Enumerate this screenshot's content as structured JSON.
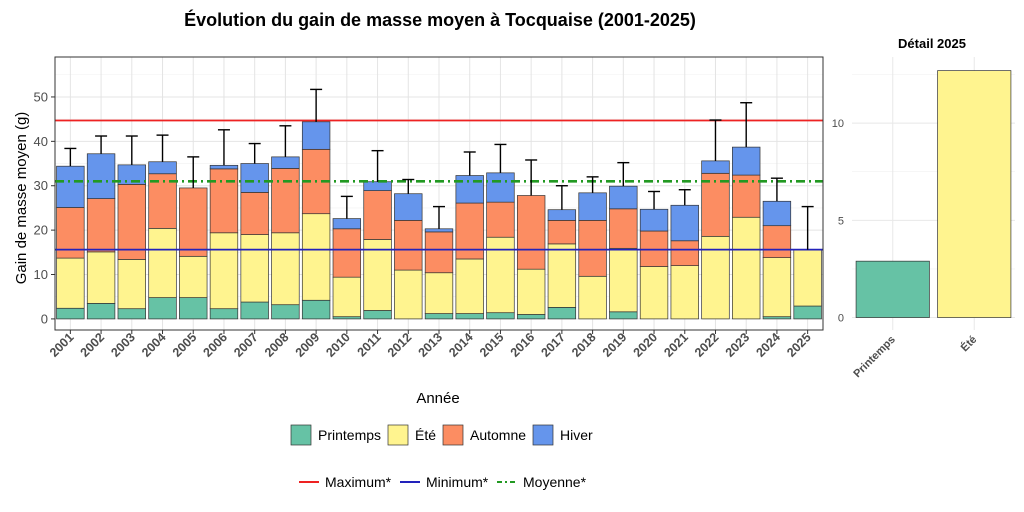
{
  "chart_data": [
    {
      "type": "bar",
      "stacked": true,
      "title": "Évolution du gain de masse moyen à Tocquaise (2001-2025)",
      "xlabel": "Année",
      "ylabel": "Gain de masse moyen (g)",
      "ylim": [
        -2.5,
        59
      ],
      "yticks": [
        0,
        10,
        20,
        30,
        40,
        50
      ],
      "grid": true,
      "categories": [
        "2001",
        "2002",
        "2003",
        "2004",
        "2005",
        "2006",
        "2007",
        "2008",
        "2009",
        "2010",
        "2011",
        "2012",
        "2013",
        "2014",
        "2015",
        "2016",
        "2017",
        "2018",
        "2019",
        "2020",
        "2021",
        "2022",
        "2023",
        "2024",
        "2025"
      ],
      "series": [
        {
          "name": "Printemps",
          "color": "#66c2a5",
          "values": [
            2.4,
            3.5,
            2.3,
            4.8,
            4.8,
            2.3,
            3.8,
            3.2,
            4.2,
            0.5,
            1.9,
            0,
            1.2,
            1.2,
            1.4,
            1.0,
            2.6,
            0,
            1.6,
            0,
            0,
            0,
            0,
            0.5,
            2.9
          ]
        },
        {
          "name": "Été",
          "color": "#fff48f",
          "values": [
            11.3,
            11.6,
            11.1,
            15.6,
            9.3,
            17.1,
            15.2,
            16.2,
            19.5,
            8.9,
            16.0,
            11.0,
            9.2,
            12.3,
            17.0,
            10.2,
            14.3,
            9.6,
            14.3,
            11.8,
            12.0,
            18.6,
            22.9,
            13.3,
            12.7
          ]
        },
        {
          "name": "Automne",
          "color": "#fc8d62",
          "values": [
            11.4,
            12.0,
            16.9,
            12.3,
            15.4,
            14.4,
            9.5,
            14.5,
            14.5,
            10.9,
            11.0,
            11.2,
            9.2,
            12.6,
            7.9,
            16.6,
            5.3,
            12.6,
            8.9,
            8.0,
            5.6,
            14.2,
            9.5,
            7.2,
            0
          ]
        },
        {
          "name": "Hiver",
          "color": "#6595ec",
          "values": [
            9.3,
            10.1,
            4.4,
            2.7,
            0,
            0.8,
            6.5,
            2.6,
            6.2,
            2.3,
            2.0,
            6.0,
            0.7,
            6.2,
            6.6,
            0,
            2.4,
            6.2,
            5.1,
            4.9,
            8.0,
            2.8,
            6.3,
            5.5,
            0
          ]
        }
      ],
      "errors": [
        4.0,
        4.0,
        6.5,
        6.0,
        7.0,
        8.0,
        4.5,
        7.0,
        7.3,
        5.0,
        7.0,
        3.2,
        5.0,
        5.3,
        6.4,
        8.0,
        5.4,
        3.6,
        5.3,
        4.0,
        3.5,
        9.2,
        10.0,
        5.2,
        9.7
      ],
      "reference_lines": [
        {
          "name": "Maximum*",
          "value": 44.7,
          "color": "#ee2222",
          "style": "solid"
        },
        {
          "name": "Minimum*",
          "value": 15.6,
          "color": "#2222bb",
          "style": "solid"
        },
        {
          "name": "Moyenne*",
          "value": 31.0,
          "color": "#229922",
          "style": "dotdash"
        }
      ]
    },
    {
      "type": "bar",
      "title": "Détail 2025",
      "categories": [
        "Printemps",
        "Été"
      ],
      "colors": [
        "#66c2a5",
        "#fff48f"
      ],
      "values": [
        2.9,
        12.7
      ],
      "ylim": [
        -0.64,
        13.4
      ],
      "yticks": [
        0,
        5,
        10
      ],
      "grid": true
    }
  ]
}
